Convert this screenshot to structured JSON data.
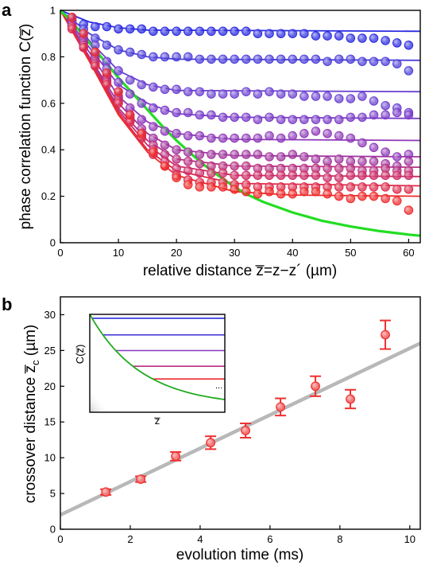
{
  "panels": {
    "a": {
      "label": "a"
    },
    "b": {
      "label": "b"
    }
  },
  "chart_data": [
    {
      "panel": "a",
      "type": "scatter",
      "xlabel": "relative distance z̅=z−z´ (µm)",
      "ylabel": "phase correlation function C(z̅)",
      "xlim": [
        0,
        62
      ],
      "ylim": [
        0,
        1
      ],
      "xticks": [
        0,
        10,
        20,
        30,
        40,
        50,
        60
      ],
      "yticks": [
        0,
        0.2,
        0.4,
        0.6,
        0.8,
        1
      ],
      "ytick_labels": [
        "0",
        "0.2",
        "0.4",
        "0.6",
        "0.8",
        "1"
      ],
      "grid": false,
      "envelope": {
        "color": "#22dd22",
        "x": [
          0,
          2,
          4,
          6,
          8,
          10,
          12,
          14,
          16,
          18,
          20,
          22,
          24,
          26,
          28,
          30,
          32,
          35,
          40,
          45,
          50,
          55,
          60,
          62
        ],
        "y": [
          1.0,
          0.95,
          0.89,
          0.83,
          0.77,
          0.71,
          0.655,
          0.6,
          0.545,
          0.49,
          0.44,
          0.395,
          0.35,
          0.31,
          0.275,
          0.24,
          0.21,
          0.175,
          0.13,
          0.095,
          0.07,
          0.05,
          0.035,
          0.03
        ]
      },
      "x_points": [
        2,
        4,
        6,
        8,
        10,
        12,
        14,
        16,
        18,
        20,
        22,
        24,
        26,
        28,
        30,
        32,
        34,
        36,
        38,
        40,
        42,
        44,
        46,
        48,
        50,
        52,
        54,
        56,
        58,
        60
      ],
      "series": [
        {
          "color": "#2a2ae0",
          "fit": [
            [
              0,
              1.0
            ],
            [
              5,
              0.95
            ],
            [
              10,
              0.925
            ],
            [
              15,
              0.915
            ],
            [
              62,
              0.91
            ]
          ],
          "values": [
            0.97,
            0.94,
            0.93,
            0.93,
            0.92,
            0.92,
            0.92,
            0.91,
            0.91,
            0.91,
            0.91,
            0.91,
            0.91,
            0.91,
            0.91,
            0.91,
            0.9,
            0.9,
            0.9,
            0.9,
            0.9,
            0.89,
            0.89,
            0.89,
            0.88,
            0.88,
            0.88,
            0.87,
            0.86,
            0.85
          ]
        },
        {
          "color": "#4b3fd8",
          "fit": [
            [
              0,
              1.0
            ],
            [
              5,
              0.9
            ],
            [
              10,
              0.83
            ],
            [
              15,
              0.8
            ],
            [
              20,
              0.79
            ],
            [
              62,
              0.785
            ]
          ],
          "values": [
            0.96,
            0.92,
            0.88,
            0.85,
            0.83,
            0.82,
            0.81,
            0.8,
            0.8,
            0.8,
            0.8,
            0.79,
            0.79,
            0.79,
            0.79,
            0.79,
            0.79,
            0.79,
            0.79,
            0.79,
            0.79,
            0.79,
            0.78,
            0.79,
            0.79,
            0.78,
            0.78,
            0.78,
            0.77,
            0.74
          ]
        },
        {
          "color": "#6a3fd0",
          "fit": [
            [
              0,
              1.0
            ],
            [
              5,
              0.87
            ],
            [
              10,
              0.74
            ],
            [
              15,
              0.68
            ],
            [
              20,
              0.655
            ],
            [
              62,
              0.65
            ]
          ],
          "values": [
            0.95,
            0.9,
            0.85,
            0.78,
            0.74,
            0.7,
            0.68,
            0.67,
            0.66,
            0.66,
            0.65,
            0.65,
            0.64,
            0.64,
            0.64,
            0.65,
            0.64,
            0.65,
            0.64,
            0.64,
            0.63,
            0.63,
            0.63,
            0.62,
            0.62,
            0.63,
            0.61,
            0.59,
            0.58,
            0.56
          ]
        },
        {
          "color": "#7a3cc8",
          "fit": [
            [
              0,
              1.0
            ],
            [
              5,
              0.84
            ],
            [
              10,
              0.68
            ],
            [
              15,
              0.6
            ],
            [
              20,
              0.555
            ],
            [
              30,
              0.54
            ],
            [
              62,
              0.535
            ]
          ],
          "values": [
            0.94,
            0.88,
            0.82,
            0.75,
            0.69,
            0.64,
            0.6,
            0.58,
            0.57,
            0.56,
            0.56,
            0.55,
            0.55,
            0.54,
            0.54,
            0.54,
            0.53,
            0.54,
            0.53,
            0.53,
            0.53,
            0.53,
            0.53,
            0.53,
            0.54,
            0.54,
            0.55,
            0.55,
            0.56,
            0.55
          ]
        },
        {
          "color": "#8d38b8",
          "fit": [
            [
              0,
              1.0
            ],
            [
              5,
              0.82
            ],
            [
              10,
              0.63
            ],
            [
              15,
              0.52
            ],
            [
              20,
              0.47
            ],
            [
              30,
              0.445
            ],
            [
              62,
              0.44
            ]
          ],
          "values": [
            0.94,
            0.87,
            0.8,
            0.72,
            0.65,
            0.58,
            0.53,
            0.5,
            0.48,
            0.47,
            0.46,
            0.46,
            0.45,
            0.45,
            0.45,
            0.45,
            0.45,
            0.46,
            0.45,
            0.46,
            0.47,
            0.48,
            0.47,
            0.46,
            0.45,
            0.43,
            0.41,
            0.39,
            0.37,
            0.38
          ]
        },
        {
          "color": "#a0349e",
          "fit": [
            [
              0,
              1.0
            ],
            [
              5,
              0.8
            ],
            [
              10,
              0.6
            ],
            [
              15,
              0.47
            ],
            [
              20,
              0.4
            ],
            [
              30,
              0.375
            ],
            [
              62,
              0.37
            ]
          ],
          "values": [
            0.93,
            0.86,
            0.79,
            0.71,
            0.63,
            0.55,
            0.49,
            0.45,
            0.42,
            0.4,
            0.39,
            0.38,
            0.38,
            0.38,
            0.38,
            0.38,
            0.38,
            0.37,
            0.37,
            0.38,
            0.37,
            0.36,
            0.35,
            0.36,
            0.35,
            0.35,
            0.35,
            0.34,
            0.33,
            0.35
          ]
        },
        {
          "color": "#b83080",
          "fit": [
            [
              0,
              1.0
            ],
            [
              5,
              0.8
            ],
            [
              10,
              0.58
            ],
            [
              15,
              0.44
            ],
            [
              20,
              0.36
            ],
            [
              30,
              0.33
            ],
            [
              62,
              0.325
            ]
          ],
          "values": [
            0.93,
            0.85,
            0.78,
            0.7,
            0.62,
            0.54,
            0.47,
            0.42,
            0.38,
            0.36,
            0.35,
            0.34,
            0.33,
            0.33,
            0.33,
            0.33,
            0.32,
            0.32,
            0.32,
            0.32,
            0.32,
            0.32,
            0.32,
            0.32,
            0.32,
            0.31,
            0.31,
            0.32,
            0.31,
            0.31
          ]
        },
        {
          "color": "#cc2c66",
          "fit": [
            [
              0,
              1.0
            ],
            [
              5,
              0.79
            ],
            [
              10,
              0.57
            ],
            [
              15,
              0.42
            ],
            [
              20,
              0.33
            ],
            [
              30,
              0.29
            ],
            [
              62,
              0.285
            ]
          ],
          "values": [
            0.93,
            0.84,
            0.77,
            0.69,
            0.61,
            0.53,
            0.46,
            0.4,
            0.35,
            0.32,
            0.31,
            0.3,
            0.3,
            0.3,
            0.29,
            0.29,
            0.29,
            0.29,
            0.29,
            0.29,
            0.29,
            0.29,
            0.28,
            0.28,
            0.29,
            0.29,
            0.29,
            0.29,
            0.29,
            0.29
          ]
        },
        {
          "color": "#dd2a4a",
          "fit": [
            [
              0,
              1.0
            ],
            [
              5,
              0.79
            ],
            [
              10,
              0.56
            ],
            [
              15,
              0.4
            ],
            [
              20,
              0.31
            ],
            [
              30,
              0.255
            ],
            [
              62,
              0.245
            ]
          ],
          "values": [
            0.92,
            0.84,
            0.76,
            0.68,
            0.6,
            0.52,
            0.45,
            0.38,
            0.33,
            0.29,
            0.27,
            0.26,
            0.26,
            0.26,
            0.25,
            0.25,
            0.24,
            0.24,
            0.24,
            0.24,
            0.24,
            0.24,
            0.24,
            0.24,
            0.24,
            0.24,
            0.24,
            0.24,
            0.23,
            0.23
          ]
        },
        {
          "color": "#ee2a2a",
          "fit": [
            [
              0,
              1.0
            ],
            [
              5,
              0.78
            ],
            [
              10,
              0.55
            ],
            [
              15,
              0.39
            ],
            [
              20,
              0.29
            ],
            [
              30,
              0.22
            ],
            [
              40,
              0.205
            ],
            [
              62,
              0.2
            ]
          ],
          "values": [
            0.97,
            0.9,
            0.82,
            0.73,
            0.65,
            0.55,
            0.47,
            0.39,
            0.33,
            0.28,
            0.25,
            0.24,
            0.24,
            0.24,
            0.23,
            0.22,
            0.21,
            0.22,
            0.21,
            0.21,
            0.22,
            0.22,
            0.21,
            0.2,
            0.19,
            0.2,
            0.2,
            0.19,
            0.18,
            0.14
          ]
        }
      ]
    },
    {
      "panel": "b",
      "type": "scatter",
      "xlabel": "evolution time (ms)",
      "ylabel_main": "crossover distance z̅",
      "ylabel_sub": "c",
      "ylabel_unit": " (µm)",
      "xlim": [
        0,
        10.3
      ],
      "ylim": [
        0,
        32.5
      ],
      "xticks": [
        0,
        2,
        4,
        6,
        8,
        10
      ],
      "yticks": [
        0,
        5,
        10,
        15,
        20,
        25,
        30
      ],
      "grid": false,
      "points_color": "#ee3030",
      "fit_color": "#b8b8b8",
      "fit": {
        "x": [
          0,
          10.3
        ],
        "y": [
          2.0,
          26.0
        ]
      },
      "x": [
        1.3,
        2.3,
        3.3,
        4.3,
        5.3,
        6.3,
        7.3,
        8.3,
        9.3
      ],
      "y": [
        5.2,
        7.0,
        10.2,
        12.1,
        13.8,
        17.1,
        20.0,
        18.2,
        27.2
      ],
      "err": [
        0.4,
        0.4,
        0.6,
        0.9,
        1.0,
        1.2,
        1.4,
        1.3,
        2.0
      ],
      "inset": {
        "ylabel": "C(z̅)",
        "xlabel": "z̅",
        "dots": "...",
        "envelope_color": "#22aa22",
        "plateaus": [
          {
            "level": 0.96,
            "color": "#2a2ae0"
          },
          {
            "level": 0.79,
            "color": "#4b3fd8"
          },
          {
            "level": 0.63,
            "color": "#8a38c0"
          },
          {
            "level": 0.47,
            "color": "#b83080"
          },
          {
            "level": 0.34,
            "color": "#ee2a2a"
          }
        ]
      }
    }
  ]
}
